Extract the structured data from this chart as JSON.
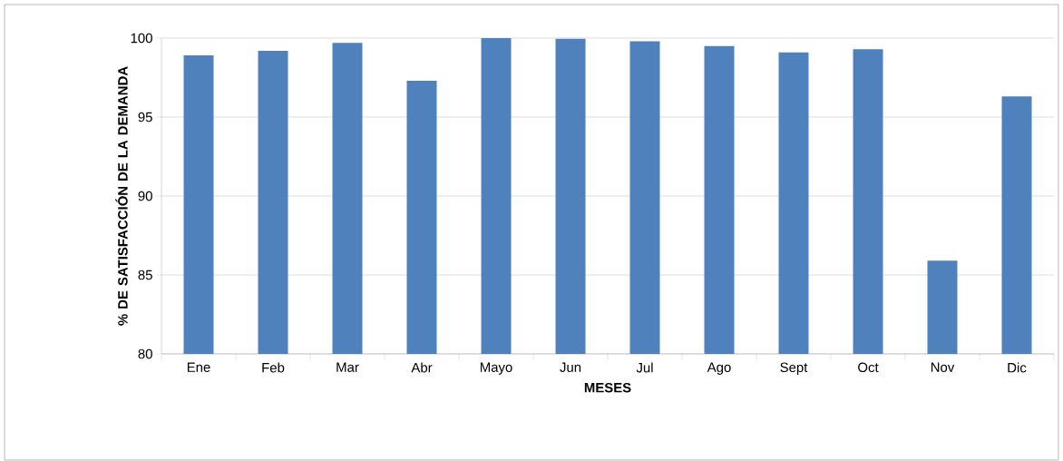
{
  "chart_data": {
    "type": "bar",
    "xlabel": "MESES",
    "ylabel": "% DE SATISFACCIÓN DE LA DEMANDA",
    "categories": [
      "Ene",
      "Feb",
      "Mar",
      "Abr",
      "Mayo",
      "Jun",
      "Jul",
      "Ago",
      "Sept",
      "Oct",
      "Nov",
      "Dic"
    ],
    "values": [
      98.9,
      99.2,
      99.7,
      97.3,
      100,
      99.95,
      99.8,
      99.5,
      99.1,
      99.3,
      85.9,
      96.3
    ],
    "color": "#4f81bd",
    "ylim": [
      80,
      100
    ],
    "yticks": [
      80,
      85,
      90,
      95,
      100
    ],
    "grid": "y"
  }
}
